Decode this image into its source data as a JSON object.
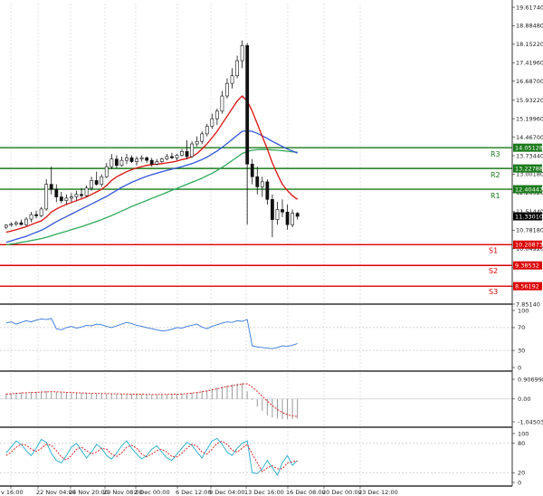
{
  "chart_data": {
    "type": "candlestick",
    "x_labels": [
      "v 16:00",
      "22 Nov 04:00",
      "24 Nov 20:00",
      "29 Nov 08:00",
      "2 Dec 00:00",
      "6 Dec 12:00",
      "9 Dec 04:00",
      "13 Dec 16:00",
      "16 Dec 08:00",
      "20 Dec 00:00",
      "23 Dec 12:00"
    ],
    "main_panel": {
      "y_ticks": [
        "19.61740",
        "18.88480",
        "18.15220",
        "17.41960",
        "16.68700",
        "15.93220",
        "15.19960",
        "14.46700",
        "13.73440",
        "13.00180",
        "12.26920",
        "11.51440",
        "10.78180",
        "10.04920",
        "9.31660",
        "8.56192",
        "7.85140"
      ],
      "ylim": [
        7.8514,
        19.6174
      ],
      "price_tag": {
        "value": 11.3301,
        "label": "11.33010",
        "color": "#000000"
      },
      "candles": [
        [
          10.9,
          11.02,
          10.82,
          10.98
        ],
        [
          10.98,
          11.1,
          10.92,
          11.02
        ],
        [
          11.02,
          11.15,
          10.95,
          11.08
        ],
        [
          11.08,
          11.2,
          10.98,
          11.0
        ],
        [
          11.0,
          11.3,
          10.95,
          11.22
        ],
        [
          11.22,
          11.5,
          11.1,
          11.4
        ],
        [
          11.4,
          11.55,
          11.25,
          11.35
        ],
        [
          11.35,
          11.7,
          11.3,
          11.62
        ],
        [
          11.62,
          12.8,
          11.55,
          12.6
        ],
        [
          12.6,
          13.3,
          12.2,
          12.4
        ],
        [
          12.4,
          12.6,
          11.9,
          12.1
        ],
        [
          12.1,
          12.3,
          11.85,
          11.95
        ],
        [
          11.95,
          12.2,
          11.8,
          12.05
        ],
        [
          12.05,
          12.25,
          11.9,
          12.1
        ],
        [
          12.1,
          12.35,
          11.95,
          12.2
        ],
        [
          12.2,
          12.45,
          12.05,
          12.15
        ],
        [
          12.15,
          12.55,
          12.1,
          12.45
        ],
        [
          12.45,
          12.9,
          12.35,
          12.75
        ],
        [
          12.75,
          13.1,
          12.55,
          12.6
        ],
        [
          12.6,
          13.0,
          12.5,
          12.9
        ],
        [
          12.9,
          13.45,
          12.85,
          13.3
        ],
        [
          13.3,
          13.8,
          13.2,
          13.6
        ],
        [
          13.6,
          13.75,
          13.25,
          13.35
        ],
        [
          13.35,
          13.7,
          13.3,
          13.55
        ],
        [
          13.55,
          13.8,
          13.4,
          13.65
        ],
        [
          13.65,
          13.75,
          13.45,
          13.5
        ],
        [
          13.5,
          13.7,
          13.35,
          13.6
        ],
        [
          13.6,
          13.75,
          13.5,
          13.65
        ],
        [
          13.65,
          13.7,
          13.45,
          13.55
        ],
        [
          13.55,
          13.65,
          13.3,
          13.4
        ],
        [
          13.4,
          13.6,
          13.35,
          13.5
        ],
        [
          13.5,
          13.65,
          13.45,
          13.6
        ],
        [
          13.6,
          13.8,
          13.55,
          13.7
        ],
        [
          13.7,
          13.85,
          13.6,
          13.65
        ],
        [
          13.65,
          13.8,
          13.55,
          13.75
        ],
        [
          13.75,
          14.0,
          13.7,
          13.9
        ],
        [
          13.9,
          14.35,
          13.6,
          13.7
        ],
        [
          13.7,
          14.3,
          13.65,
          14.2
        ],
        [
          14.2,
          14.5,
          14.1,
          14.3
        ],
        [
          14.3,
          14.7,
          14.2,
          14.6
        ],
        [
          14.6,
          15.0,
          14.5,
          14.9
        ],
        [
          14.9,
          15.4,
          14.8,
          15.2
        ],
        [
          15.2,
          15.6,
          14.95,
          15.5
        ],
        [
          15.5,
          16.3,
          15.4,
          16.1
        ],
        [
          16.1,
          16.8,
          16.0,
          16.6
        ],
        [
          16.6,
          17.2,
          16.4,
          16.9
        ],
        [
          16.9,
          17.7,
          16.8,
          17.5
        ],
        [
          17.5,
          18.3,
          17.2,
          18.1
        ],
        [
          18.1,
          18.2,
          11.0,
          13.4
        ],
        [
          13.4,
          13.6,
          12.6,
          12.9
        ],
        [
          12.9,
          13.3,
          12.2,
          12.5
        ],
        [
          12.5,
          12.9,
          12.1,
          12.7
        ],
        [
          12.7,
          12.8,
          11.8,
          12.0
        ],
        [
          12.0,
          12.2,
          10.5,
          11.2
        ],
        [
          11.2,
          11.9,
          11.0,
          11.6
        ],
        [
          11.6,
          12.0,
          11.3,
          11.5
        ],
        [
          11.5,
          11.8,
          10.8,
          11.0
        ],
        [
          11.0,
          11.6,
          10.9,
          11.45
        ],
        [
          11.45,
          11.5,
          11.2,
          11.33
        ]
      ],
      "ma_fast": [
        10.7,
        10.75,
        10.8,
        10.86,
        10.92,
        11.0,
        11.08,
        11.15,
        11.3,
        11.5,
        11.62,
        11.72,
        11.8,
        11.88,
        11.95,
        12.02,
        12.1,
        12.2,
        12.3,
        12.4,
        12.55,
        12.75,
        12.9,
        13.0,
        13.1,
        13.18,
        13.25,
        13.3,
        13.35,
        13.38,
        13.4,
        13.42,
        13.45,
        13.48,
        13.52,
        13.58,
        13.62,
        13.7,
        13.82,
        14.0,
        14.2,
        14.45,
        14.7,
        15.0,
        15.3,
        15.6,
        15.9,
        16.1,
        15.9,
        15.5,
        15.0,
        14.5,
        14.0,
        13.45,
        13.0,
        12.6,
        12.35,
        12.15,
        12.0
      ],
      "ma_mid": [
        10.3,
        10.36,
        10.42,
        10.48,
        10.54,
        10.62,
        10.7,
        10.78,
        10.88,
        11.0,
        11.12,
        11.22,
        11.32,
        11.42,
        11.52,
        11.62,
        11.72,
        11.82,
        11.92,
        12.02,
        12.12,
        12.24,
        12.36,
        12.48,
        12.58,
        12.68,
        12.76,
        12.84,
        12.92,
        12.98,
        13.04,
        13.1,
        13.15,
        13.2,
        13.25,
        13.3,
        13.36,
        13.42,
        13.5,
        13.58,
        13.68,
        13.8,
        13.92,
        14.06,
        14.22,
        14.38,
        14.54,
        14.7,
        14.72,
        14.7,
        14.62,
        14.52,
        14.42,
        14.3,
        14.2,
        14.1,
        14.0,
        13.92,
        13.84
      ],
      "ma_slow": [
        10.2,
        10.23,
        10.26,
        10.3,
        10.33,
        10.37,
        10.41,
        10.45,
        10.5,
        10.56,
        10.62,
        10.68,
        10.74,
        10.8,
        10.86,
        10.92,
        10.99,
        11.06,
        11.13,
        11.2,
        11.28,
        11.36,
        11.45,
        11.54,
        11.63,
        11.72,
        11.8,
        11.88,
        11.96,
        12.04,
        12.12,
        12.2,
        12.28,
        12.36,
        12.44,
        12.52,
        12.6,
        12.68,
        12.76,
        12.84,
        12.94,
        13.04,
        13.15,
        13.27,
        13.4,
        13.54,
        13.68,
        13.82,
        13.9,
        13.95,
        13.97,
        13.98,
        13.98,
        13.96,
        13.95,
        13.93,
        13.91,
        13.89,
        13.87
      ],
      "levels": [
        {
          "name": "R3",
          "value": 14.05128,
          "label": "14.05128",
          "color": "#1a7a1a"
        },
        {
          "name": "R2",
          "value": 13.22788,
          "label": "13.22788",
          "color": "#1a7a1a"
        },
        {
          "name": "R1",
          "value": 12.40447,
          "label": "12.40447",
          "color": "#1a7a1a"
        },
        {
          "name": "S1",
          "value": 10.20873,
          "label": "10.20873",
          "color": "#dd0000"
        },
        {
          "name": "S2",
          "value": 9.38532,
          "label": "9.38532",
          "color": "#dd0000"
        },
        {
          "name": "S3",
          "value": 8.56192,
          "label": "8.56192",
          "color": "#dd0000"
        }
      ]
    },
    "panel_1": {
      "y_ticks": [
        "100",
        "70",
        "30",
        "0"
      ],
      "ylim": [
        0,
        100
      ],
      "series": [
        78,
        80,
        76,
        79,
        82,
        80,
        83,
        85,
        84,
        86,
        68,
        66,
        70,
        72,
        69,
        71,
        74,
        73,
        76,
        75,
        72,
        70,
        73,
        76,
        79,
        77,
        74,
        72,
        70,
        68,
        66,
        64,
        65,
        67,
        70,
        69,
        72,
        74,
        76,
        71,
        68,
        72,
        75,
        78,
        80,
        79,
        82,
        81,
        84,
        38,
        36,
        35,
        34,
        33,
        35,
        38,
        37,
        39,
        42
      ]
    },
    "panel_2": {
      "y_ticks": [
        "0.906998",
        "0.00",
        "-1.045035"
      ],
      "ylim": [
        -1.045035,
        0.906998
      ],
      "histogram": [
        0.25,
        0.27,
        0.28,
        0.3,
        0.31,
        0.32,
        0.33,
        0.34,
        0.36,
        0.35,
        0.33,
        0.31,
        0.3,
        0.29,
        0.28,
        0.27,
        0.26,
        0.26,
        0.25,
        0.25,
        0.24,
        0.24,
        0.23,
        0.23,
        0.22,
        0.22,
        0.21,
        0.21,
        0.21,
        0.2,
        0.2,
        0.2,
        0.21,
        0.22,
        0.23,
        0.24,
        0.26,
        0.29,
        0.32,
        0.36,
        0.41,
        0.47,
        0.53,
        0.58,
        0.63,
        0.67,
        0.71,
        0.74,
        0.35,
        -0.05,
        -0.35,
        -0.55,
        -0.75,
        -0.85,
        -0.9,
        -0.92,
        -0.93,
        -0.92,
        -0.9
      ],
      "signal": [
        0.22,
        0.24,
        0.26,
        0.28,
        0.29,
        0.3,
        0.31,
        0.32,
        0.33,
        0.34,
        0.33,
        0.32,
        0.31,
        0.3,
        0.29,
        0.28,
        0.27,
        0.26,
        0.26,
        0.25,
        0.25,
        0.24,
        0.24,
        0.23,
        0.23,
        0.22,
        0.22,
        0.22,
        0.21,
        0.21,
        0.21,
        0.21,
        0.21,
        0.22,
        0.22,
        0.23,
        0.25,
        0.27,
        0.3,
        0.33,
        0.37,
        0.42,
        0.47,
        0.52,
        0.57,
        0.61,
        0.65,
        0.69,
        0.7,
        0.55,
        0.35,
        0.12,
        -0.1,
        -0.3,
        -0.48,
        -0.62,
        -0.72,
        -0.78,
        -0.8
      ]
    },
    "panel_3": {
      "y_ticks": [
        "100",
        "80",
        "20",
        "0"
      ],
      "ylim": [
        0,
        100
      ],
      "k": [
        60,
        72,
        85,
        78,
        65,
        55,
        70,
        88,
        82,
        60,
        45,
        40,
        55,
        72,
        80,
        65,
        50,
        62,
        78,
        70,
        55,
        48,
        60,
        75,
        85,
        70,
        58,
        48,
        55,
        68,
        75,
        62,
        50,
        45,
        58,
        70,
        82,
        76,
        62,
        50,
        68,
        85,
        90,
        78,
        62,
        55,
        70,
        80,
        85,
        20,
        18,
        28,
        45,
        30,
        15,
        40,
        55,
        35,
        45
      ],
      "d": [
        55,
        62,
        72,
        78,
        76,
        68,
        63,
        70,
        78,
        76,
        65,
        52,
        46,
        55,
        68,
        72,
        65,
        58,
        62,
        70,
        68,
        58,
        53,
        60,
        72,
        76,
        70,
        58,
        52,
        58,
        65,
        68,
        62,
        53,
        52,
        60,
        70,
        78,
        74,
        62,
        58,
        68,
        80,
        84,
        78,
        66,
        62,
        70,
        78,
        58,
        40,
        22,
        30,
        34,
        28,
        28,
        40,
        42,
        44
      ]
    }
  }
}
